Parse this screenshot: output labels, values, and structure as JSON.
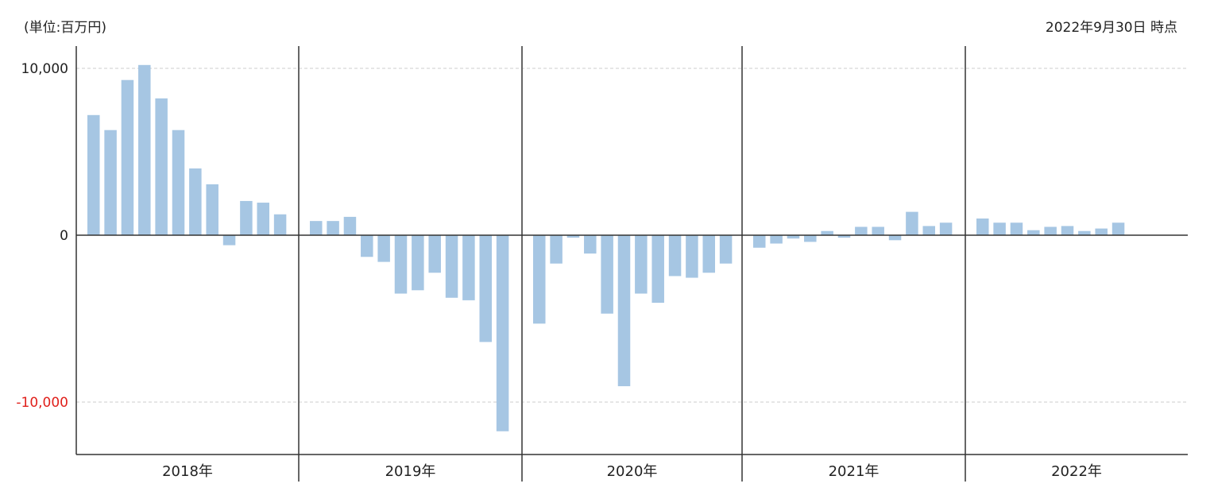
{
  "header": {
    "unit": "(単位:百万円)",
    "as_of": "2022年9月30日 時点"
  },
  "colors": {
    "bar": "#a6c6e3",
    "axis": "#333333",
    "grid": "#cccccc",
    "negative_tick": "#e0201b",
    "divider": "#666666"
  },
  "chart_data": {
    "type": "bar",
    "title": "",
    "xlabel": "",
    "ylabel": "",
    "ylim": [
      -13000,
      11000
    ],
    "grid": true,
    "yticks": [
      {
        "value": 10000,
        "label": "10,000"
      },
      {
        "value": 0,
        "label": "0"
      },
      {
        "value": -10000,
        "label": "-10,000"
      }
    ],
    "groups": [
      {
        "label": "2018年",
        "values": [
          7200,
          6300,
          9300,
          10200,
          8200,
          6300,
          4000,
          3050,
          -600,
          2050,
          1950,
          1250
        ]
      },
      {
        "label": "2019年",
        "values": [
          850,
          850,
          1100,
          -1300,
          -1600,
          -3500,
          -3300,
          -2250,
          -3750,
          -3900,
          -6400,
          -11750
        ]
      },
      {
        "label": "2020年",
        "values": [
          -5300,
          -1700,
          -150,
          -1100,
          -4700,
          -9050,
          -3500,
          -4050,
          -2450,
          -2550,
          -2250,
          -1700
        ]
      },
      {
        "label": "2021年",
        "values": [
          -750,
          -500,
          -200,
          -400,
          250,
          -150,
          500,
          500,
          -300,
          1400,
          550,
          750
        ]
      },
      {
        "label": "2022年",
        "values": [
          1000,
          750,
          750,
          300,
          500,
          550,
          250,
          400,
          750
        ]
      }
    ]
  }
}
